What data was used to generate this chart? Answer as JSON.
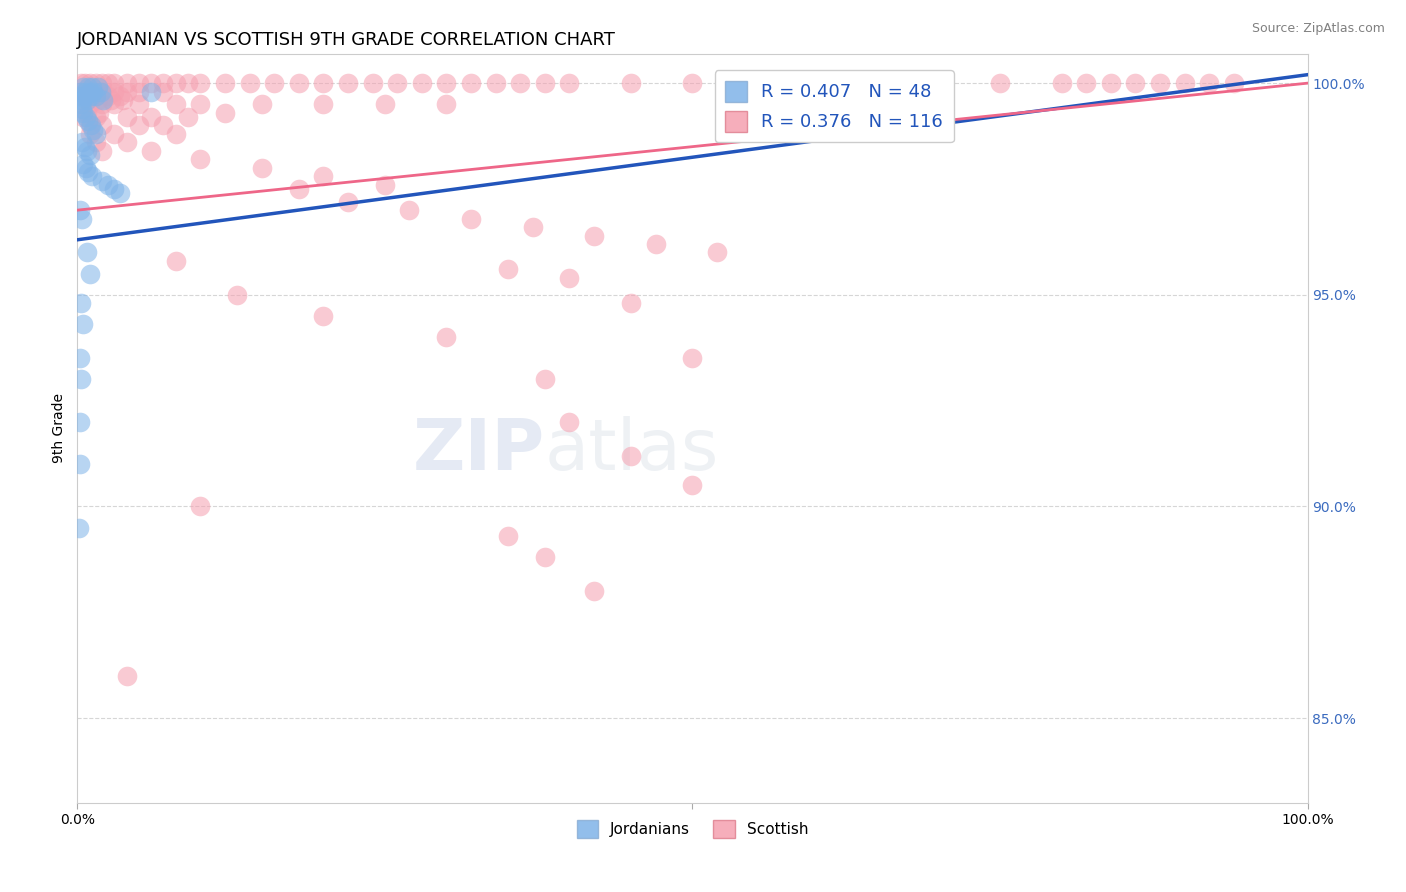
{
  "title": "JORDANIAN VS SCOTTISH 9TH GRADE CORRELATION CHART",
  "source_text": "Source: ZipAtlas.com",
  "ylabel": "9th Grade",
  "xlim": [
    0,
    1.0
  ],
  "ylim": [
    0.83,
    1.007
  ],
  "yticks": [
    0.85,
    0.9,
    0.95,
    1.0
  ],
  "ytick_labels": [
    "85.0%",
    "90.0%",
    "95.0%",
    "100.0%"
  ],
  "blue_R": 0.407,
  "blue_N": 48,
  "pink_R": 0.376,
  "pink_N": 116,
  "blue_color": "#7FB3E8",
  "pink_color": "#F5A0B0",
  "blue_line_color": "#2255BB",
  "pink_line_color": "#EE6688",
  "blue_trend_x": [
    0.0,
    1.0
  ],
  "blue_trend_y": [
    0.963,
    1.002
  ],
  "pink_trend_x": [
    0.0,
    1.0
  ],
  "pink_trend_y": [
    0.97,
    1.0
  ],
  "watermark_zip": "ZIP",
  "watermark_atlas": "atlas",
  "title_fontsize": 13,
  "axis_label_fontsize": 10,
  "tick_fontsize": 10,
  "legend1_R_label": "R = 0.407   N = 48",
  "legend2_R_label": "R = 0.376   N = 116",
  "jordanian_scatter": [
    [
      0.002,
      0.998
    ],
    [
      0.003,
      0.997
    ],
    [
      0.004,
      0.996
    ],
    [
      0.005,
      0.999
    ],
    [
      0.006,
      0.998
    ],
    [
      0.007,
      0.997
    ],
    [
      0.008,
      0.996
    ],
    [
      0.009,
      0.999
    ],
    [
      0.01,
      0.998
    ],
    [
      0.011,
      0.997
    ],
    [
      0.012,
      0.999
    ],
    [
      0.013,
      0.998
    ],
    [
      0.015,
      0.997
    ],
    [
      0.017,
      0.999
    ],
    [
      0.019,
      0.998
    ],
    [
      0.021,
      0.996
    ],
    [
      0.003,
      0.995
    ],
    [
      0.004,
      0.994
    ],
    [
      0.005,
      0.993
    ],
    [
      0.007,
      0.992
    ],
    [
      0.009,
      0.991
    ],
    [
      0.011,
      0.99
    ],
    [
      0.013,
      0.989
    ],
    [
      0.015,
      0.988
    ],
    [
      0.004,
      0.986
    ],
    [
      0.006,
      0.985
    ],
    [
      0.008,
      0.984
    ],
    [
      0.01,
      0.983
    ],
    [
      0.005,
      0.981
    ],
    [
      0.007,
      0.98
    ],
    [
      0.009,
      0.979
    ],
    [
      0.012,
      0.978
    ],
    [
      0.02,
      0.977
    ],
    [
      0.025,
      0.976
    ],
    [
      0.03,
      0.975
    ],
    [
      0.035,
      0.974
    ],
    [
      0.002,
      0.97
    ],
    [
      0.004,
      0.968
    ],
    [
      0.008,
      0.96
    ],
    [
      0.01,
      0.955
    ],
    [
      0.003,
      0.948
    ],
    [
      0.005,
      0.943
    ],
    [
      0.002,
      0.935
    ],
    [
      0.003,
      0.93
    ],
    [
      0.002,
      0.92
    ],
    [
      0.002,
      0.91
    ],
    [
      0.001,
      0.895
    ],
    [
      0.06,
      0.998
    ]
  ],
  "scottish_scatter": [
    [
      0.003,
      1.0
    ],
    [
      0.006,
      1.0
    ],
    [
      0.01,
      1.0
    ],
    [
      0.015,
      1.0
    ],
    [
      0.02,
      1.0
    ],
    [
      0.025,
      1.0
    ],
    [
      0.03,
      1.0
    ],
    [
      0.04,
      1.0
    ],
    [
      0.05,
      1.0
    ],
    [
      0.06,
      1.0
    ],
    [
      0.07,
      1.0
    ],
    [
      0.08,
      1.0
    ],
    [
      0.09,
      1.0
    ],
    [
      0.1,
      1.0
    ],
    [
      0.12,
      1.0
    ],
    [
      0.14,
      1.0
    ],
    [
      0.16,
      1.0
    ],
    [
      0.18,
      1.0
    ],
    [
      0.2,
      1.0
    ],
    [
      0.22,
      1.0
    ],
    [
      0.24,
      1.0
    ],
    [
      0.26,
      1.0
    ],
    [
      0.28,
      1.0
    ],
    [
      0.3,
      1.0
    ],
    [
      0.32,
      1.0
    ],
    [
      0.34,
      1.0
    ],
    [
      0.36,
      1.0
    ],
    [
      0.38,
      1.0
    ],
    [
      0.4,
      1.0
    ],
    [
      0.45,
      1.0
    ],
    [
      0.5,
      1.0
    ],
    [
      0.55,
      1.0
    ],
    [
      0.6,
      1.0
    ],
    [
      0.65,
      1.0
    ],
    [
      0.7,
      1.0
    ],
    [
      0.75,
      1.0
    ],
    [
      0.8,
      1.0
    ],
    [
      0.82,
      1.0
    ],
    [
      0.84,
      1.0
    ],
    [
      0.86,
      1.0
    ],
    [
      0.88,
      1.0
    ],
    [
      0.9,
      1.0
    ],
    [
      0.92,
      1.0
    ],
    [
      0.94,
      1.0
    ],
    [
      0.01,
      0.998
    ],
    [
      0.02,
      0.998
    ],
    [
      0.03,
      0.998
    ],
    [
      0.04,
      0.998
    ],
    [
      0.05,
      0.998
    ],
    [
      0.07,
      0.998
    ],
    [
      0.005,
      0.997
    ],
    [
      0.015,
      0.997
    ],
    [
      0.025,
      0.997
    ],
    [
      0.035,
      0.997
    ],
    [
      0.007,
      0.996
    ],
    [
      0.017,
      0.996
    ],
    [
      0.027,
      0.996
    ],
    [
      0.037,
      0.996
    ],
    [
      0.01,
      0.995
    ],
    [
      0.02,
      0.995
    ],
    [
      0.03,
      0.995
    ],
    [
      0.05,
      0.995
    ],
    [
      0.08,
      0.995
    ],
    [
      0.1,
      0.995
    ],
    [
      0.15,
      0.995
    ],
    [
      0.2,
      0.995
    ],
    [
      0.25,
      0.995
    ],
    [
      0.3,
      0.995
    ],
    [
      0.008,
      0.993
    ],
    [
      0.018,
      0.993
    ],
    [
      0.12,
      0.993
    ],
    [
      0.005,
      0.992
    ],
    [
      0.015,
      0.992
    ],
    [
      0.04,
      0.992
    ],
    [
      0.06,
      0.992
    ],
    [
      0.09,
      0.992
    ],
    [
      0.01,
      0.99
    ],
    [
      0.02,
      0.99
    ],
    [
      0.05,
      0.99
    ],
    [
      0.07,
      0.99
    ],
    [
      0.01,
      0.988
    ],
    [
      0.03,
      0.988
    ],
    [
      0.08,
      0.988
    ],
    [
      0.015,
      0.986
    ],
    [
      0.04,
      0.986
    ],
    [
      0.02,
      0.984
    ],
    [
      0.06,
      0.984
    ],
    [
      0.1,
      0.982
    ],
    [
      0.15,
      0.98
    ],
    [
      0.2,
      0.978
    ],
    [
      0.25,
      0.976
    ],
    [
      0.18,
      0.975
    ],
    [
      0.22,
      0.972
    ],
    [
      0.27,
      0.97
    ],
    [
      0.32,
      0.968
    ],
    [
      0.37,
      0.966
    ],
    [
      0.42,
      0.964
    ],
    [
      0.47,
      0.962
    ],
    [
      0.52,
      0.96
    ],
    [
      0.08,
      0.958
    ],
    [
      0.35,
      0.956
    ],
    [
      0.4,
      0.954
    ],
    [
      0.13,
      0.95
    ],
    [
      0.45,
      0.948
    ],
    [
      0.2,
      0.945
    ],
    [
      0.3,
      0.94
    ],
    [
      0.5,
      0.935
    ],
    [
      0.38,
      0.93
    ],
    [
      0.4,
      0.92
    ],
    [
      0.45,
      0.912
    ],
    [
      0.5,
      0.905
    ],
    [
      0.1,
      0.9
    ],
    [
      0.35,
      0.893
    ],
    [
      0.38,
      0.888
    ],
    [
      0.42,
      0.88
    ],
    [
      0.04,
      0.86
    ]
  ]
}
